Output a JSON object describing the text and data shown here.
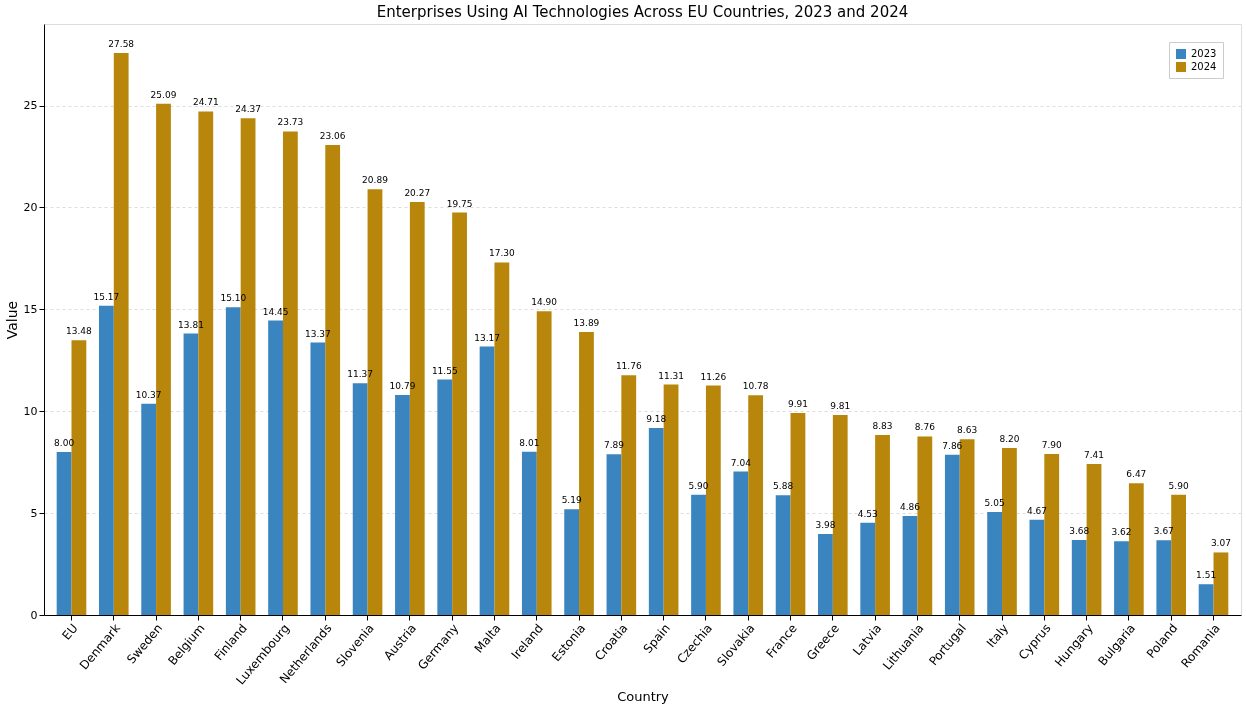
{
  "chart_data": {
    "type": "bar",
    "title": "Enterprises Using AI Technologies Across EU Countries, 2023 and 2024",
    "xlabel": "Country",
    "ylabel": "Value",
    "categories": [
      "EU",
      "Denmark",
      "Sweden",
      "Belgium",
      "Finland",
      "Luxembourg",
      "Netherlands",
      "Slovenia",
      "Austria",
      "Germany",
      "Malta",
      "Ireland",
      "Estonia",
      "Croatia",
      "Spain",
      "Czechia",
      "Slovakia",
      "France",
      "Greece",
      "Latvia",
      "Lithuania",
      "Portugal",
      "Italy",
      "Cyprus",
      "Hungary",
      "Bulgaria",
      "Poland",
      "Romania"
    ],
    "series": [
      {
        "name": "2023",
        "color": "#3a84c0",
        "values": [
          8.0,
          15.17,
          10.37,
          13.81,
          15.1,
          14.45,
          13.37,
          11.37,
          10.79,
          11.55,
          13.17,
          8.01,
          5.19,
          7.89,
          9.18,
          5.9,
          7.04,
          5.88,
          3.98,
          4.53,
          4.86,
          7.86,
          5.05,
          4.67,
          3.68,
          3.62,
          3.67,
          1.51
        ],
        "value_labels": [
          "8.00",
          "15.17",
          "10.37",
          "13.81",
          "15.10",
          "14.45",
          "13.37",
          "11.37",
          "10.79",
          "11.55",
          "13.17",
          "8.01",
          "5.19",
          "7.89",
          "9.18",
          "5.90",
          "7.04",
          "5.88",
          "3.98",
          "4.53",
          "4.86",
          "7.86",
          "5.05",
          "4.67",
          "3.68",
          "3.62",
          "3.67",
          "1.51"
        ]
      },
      {
        "name": "2024",
        "color": "#b8860b",
        "values": [
          13.48,
          27.58,
          25.09,
          24.71,
          24.37,
          23.73,
          23.06,
          20.89,
          20.27,
          19.75,
          17.3,
          14.9,
          13.89,
          11.76,
          11.31,
          11.26,
          10.78,
          9.91,
          9.81,
          8.83,
          8.76,
          8.63,
          8.2,
          7.9,
          7.41,
          6.47,
          5.9,
          3.07
        ],
        "value_labels": [
          "13.48",
          "27.58",
          "25.09",
          "24.71",
          "24.37",
          "23.73",
          "23.06",
          "20.89",
          "20.27",
          "19.75",
          "17.30",
          "14.90",
          "13.89",
          "11.76",
          "11.31",
          "11.26",
          "10.78",
          "9.91",
          "9.81",
          "8.83",
          "8.76",
          "8.63",
          "8.20",
          "7.90",
          "7.41",
          "6.47",
          "5.90",
          "3.07"
        ]
      }
    ],
    "ylim": [
      0,
      29
    ],
    "yticks": [
      0,
      5,
      10,
      15,
      20,
      25
    ],
    "grid": "y",
    "legend": "top right"
  }
}
